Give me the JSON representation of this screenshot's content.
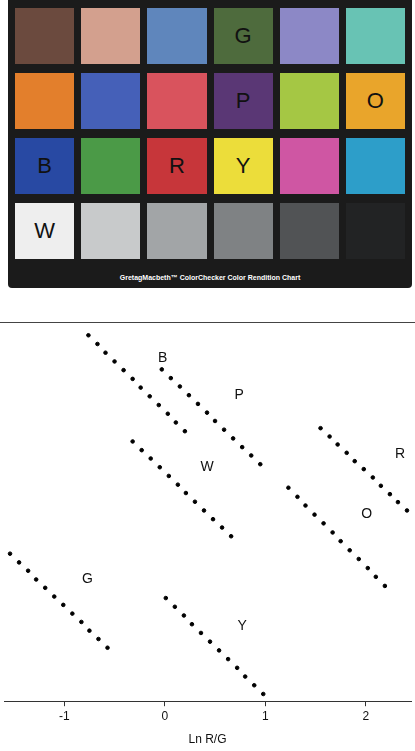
{
  "color_checker": {
    "patches": [
      [
        {
          "color": "#6b4a3e"
        },
        {
          "color": "#d3a08e"
        },
        {
          "color": "#5f86bc"
        },
        {
          "color": "#4e6b3d",
          "label": "G"
        },
        {
          "color": "#8c88c6"
        },
        {
          "color": "#68c3b4"
        }
      ],
      [
        {
          "color": "#e37f2c"
        },
        {
          "color": "#4560b8"
        },
        {
          "color": "#d9535d"
        },
        {
          "color": "#5a3775",
          "label": "P"
        },
        {
          "color": "#a5c744"
        },
        {
          "color": "#e9a52b",
          "label": "O"
        }
      ],
      [
        {
          "color": "#2849a3",
          "label": "B"
        },
        {
          "color": "#4b9a47"
        },
        {
          "color": "#c7363a",
          "label": "R"
        },
        {
          "color": "#ecdd3a",
          "label": "Y"
        },
        {
          "color": "#cf56a3"
        },
        {
          "color": "#2d9ec9"
        }
      ],
      [
        {
          "color": "#eeeeee",
          "label": "W"
        },
        {
          "color": "#c8cacb"
        },
        {
          "color": "#a2a5a7"
        },
        {
          "color": "#7f8284"
        },
        {
          "color": "#515355"
        },
        {
          "color": "#222324"
        }
      ]
    ],
    "caption": "GretagMacbeth™ ColorChecker Color Rendition Chart"
  },
  "chart_data": {
    "type": "scatter",
    "xlabel": "Ln R/G",
    "xlim": [
      -1.6,
      2.45
    ],
    "xticks": [
      -1,
      0,
      1,
      2
    ],
    "ylim": [
      0,
      10
    ],
    "tick_labels": "x",
    "grid": false,
    "series": [
      {
        "color": "#000000",
        "marker": "circle",
        "x": [
          -0.76,
          -0.67,
          -0.59,
          -0.5,
          -0.41,
          -0.32,
          -0.24,
          -0.15,
          -0.06,
          0.03,
          0.11,
          0.2
        ],
        "values": [
          9.65,
          9.42,
          9.19,
          8.96,
          8.73,
          8.5,
          8.27,
          8.04,
          7.81,
          7.58,
          7.35,
          7.12
        ]
      },
      {
        "color": "#000000",
        "marker": "circle",
        "x": [
          -0.03,
          0.06,
          0.15,
          0.24,
          0.33,
          0.42,
          0.5,
          0.59,
          0.68,
          0.77,
          0.86,
          0.95
        ],
        "values": [
          8.75,
          8.52,
          8.3,
          8.07,
          7.84,
          7.61,
          7.39,
          7.16,
          6.93,
          6.7,
          6.48,
          6.25
        ]
      },
      {
        "color": "#000000",
        "marker": "circle",
        "x": [
          -0.32,
          -0.23,
          -0.14,
          -0.05,
          0.04,
          0.13,
          0.21,
          0.3,
          0.39,
          0.48,
          0.57,
          0.66
        ],
        "values": [
          6.85,
          6.62,
          6.4,
          6.17,
          5.94,
          5.71,
          5.49,
          5.26,
          5.03,
          4.8,
          4.58,
          4.35
        ]
      },
      {
        "color": "#000000",
        "marker": "circle",
        "x": [
          1.55,
          1.64,
          1.72,
          1.81,
          1.89,
          1.98,
          2.07,
          2.15,
          2.24,
          2.32,
          2.41
        ],
        "values": [
          7.2,
          6.98,
          6.77,
          6.55,
          6.33,
          6.12,
          5.9,
          5.68,
          5.46,
          5.25,
          5.03
        ]
      },
      {
        "color": "#000000",
        "marker": "circle",
        "x": [
          1.23,
          1.32,
          1.4,
          1.49,
          1.58,
          1.67,
          1.75,
          1.84,
          1.93,
          2.02,
          2.1,
          2.19
        ],
        "values": [
          5.63,
          5.39,
          5.16,
          4.92,
          4.69,
          4.45,
          4.22,
          3.98,
          3.75,
          3.51,
          3.28,
          3.04
        ]
      },
      {
        "color": "#000000",
        "marker": "circle",
        "x": [
          -1.54,
          -1.45,
          -1.36,
          -1.28,
          -1.19,
          -1.1,
          -1.01,
          -0.92,
          -0.83,
          -0.75,
          -0.66,
          -0.57
        ],
        "values": [
          3.89,
          3.66,
          3.44,
          3.21,
          2.99,
          2.76,
          2.54,
          2.31,
          2.09,
          1.86,
          1.64,
          1.41
        ]
      },
      {
        "color": "#000000",
        "marker": "circle",
        "x": [
          0.01,
          0.1,
          0.19,
          0.27,
          0.36,
          0.45,
          0.54,
          0.63,
          0.72,
          0.8,
          0.89,
          0.98
        ],
        "values": [
          2.72,
          2.49,
          2.26,
          2.03,
          1.8,
          1.57,
          1.34,
          1.11,
          0.88,
          0.65,
          0.42,
          0.19
        ]
      }
    ],
    "annotations": [
      {
        "text": "B",
        "x": -0.02,
        "y": 9.05
      },
      {
        "text": "P",
        "x": 0.74,
        "y": 8.07
      },
      {
        "text": "W",
        "x": 0.42,
        "y": 6.17
      },
      {
        "text": "R",
        "x": 2.34,
        "y": 6.52
      },
      {
        "text": "O",
        "x": 2.01,
        "y": 4.92
      },
      {
        "text": "G",
        "x": -0.77,
        "y": 3.21
      },
      {
        "text": "Y",
        "x": 0.77,
        "y": 1.98
      }
    ]
  }
}
